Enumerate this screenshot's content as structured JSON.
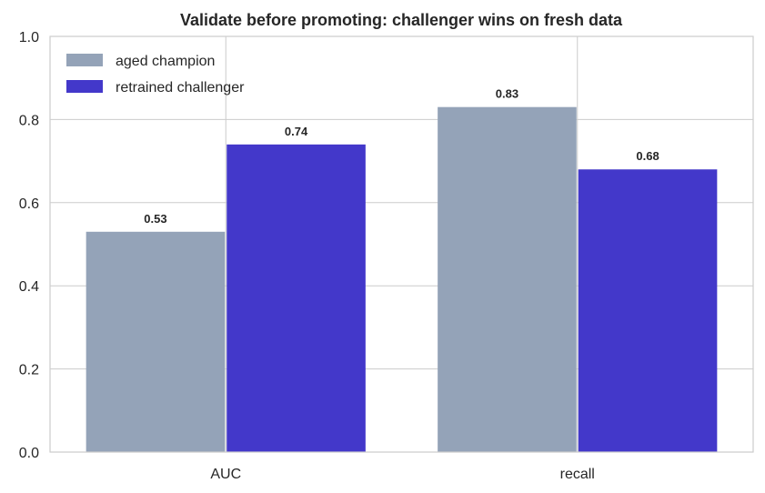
{
  "chart_data": {
    "type": "bar",
    "title": "Validate before promoting: challenger wins on fresh data",
    "xlabel": "",
    "ylabel": "",
    "categories": [
      "AUC",
      "recall"
    ],
    "series": [
      {
        "name": "aged champion",
        "values": [
          0.53,
          0.83
        ],
        "labels": [
          "0.53",
          "0.83"
        ],
        "color": "#94a3b8"
      },
      {
        "name": "retrained challenger",
        "values": [
          0.74,
          0.68
        ],
        "labels": [
          "0.74",
          "0.68"
        ],
        "color": "#4338ca"
      }
    ],
    "ylim": [
      0,
      1.0
    ],
    "yticks": [
      "0.0",
      "0.2",
      "0.4",
      "0.6",
      "0.8",
      "1.0"
    ],
    "grid": true,
    "legend": "top-left"
  }
}
